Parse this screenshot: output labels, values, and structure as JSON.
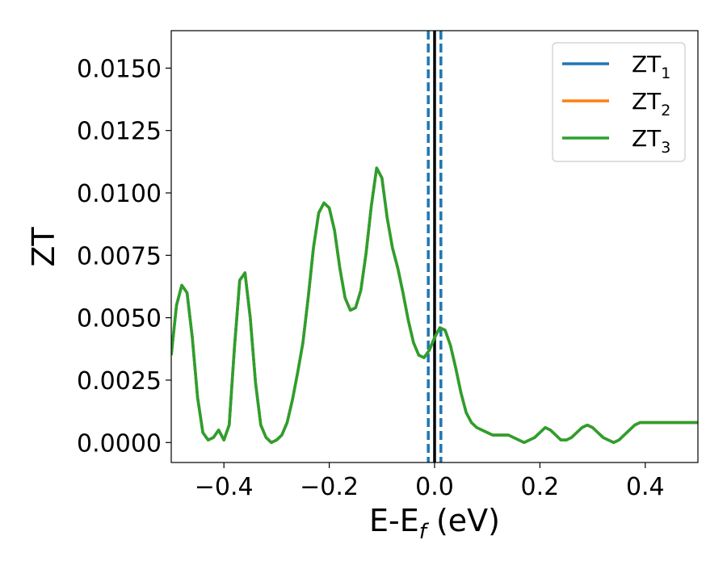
{
  "chart_data": {
    "type": "line",
    "xlabel": {
      "main": "E-E",
      "sub": "f",
      "suffix": " (eV)"
    },
    "ylabel": "ZT",
    "xlim": [
      -0.5,
      0.5
    ],
    "ylim": [
      -0.0008,
      0.0165
    ],
    "xticks": [
      -0.4,
      -0.2,
      0.0,
      0.2,
      0.4
    ],
    "xtick_labels": [
      "−0.4",
      "−0.2",
      "0.0",
      "0.2",
      "0.4"
    ],
    "yticks": [
      0.0,
      0.0025,
      0.005,
      0.0075,
      0.01,
      0.0125,
      0.015
    ],
    "ytick_labels": [
      "0.0000",
      "0.0025",
      "0.0050",
      "0.0075",
      "0.0100",
      "0.0125",
      "0.0150"
    ],
    "grid": false,
    "legend_position": "top-right",
    "vlines": [
      {
        "x": -0.012,
        "style": "dashed",
        "color": "#1f77b4"
      },
      {
        "x": 0.0,
        "style": "solid",
        "color": "#000000"
      },
      {
        "x": 0.012,
        "style": "dashed",
        "color": "#1f77b4"
      }
    ],
    "x": [
      -0.5,
      -0.49,
      -0.48,
      -0.47,
      -0.46,
      -0.45,
      -0.44,
      -0.43,
      -0.42,
      -0.41,
      -0.4,
      -0.39,
      -0.38,
      -0.37,
      -0.36,
      -0.35,
      -0.34,
      -0.33,
      -0.32,
      -0.31,
      -0.3,
      -0.29,
      -0.28,
      -0.27,
      -0.26,
      -0.25,
      -0.24,
      -0.23,
      -0.22,
      -0.21,
      -0.2,
      -0.19,
      -0.18,
      -0.17,
      -0.16,
      -0.15,
      -0.14,
      -0.13,
      -0.12,
      -0.11,
      -0.1,
      -0.09,
      -0.08,
      -0.07,
      -0.06,
      -0.05,
      -0.04,
      -0.03,
      -0.02,
      -0.01,
      0.0,
      0.01,
      0.02,
      0.03,
      0.04,
      0.05,
      0.06,
      0.07,
      0.08,
      0.09,
      0.1,
      0.11,
      0.12,
      0.13,
      0.14,
      0.15,
      0.16,
      0.17,
      0.18,
      0.19,
      0.2,
      0.21,
      0.22,
      0.23,
      0.24,
      0.25,
      0.26,
      0.27,
      0.28,
      0.29,
      0.3,
      0.31,
      0.32,
      0.33,
      0.34,
      0.35,
      0.36,
      0.37,
      0.38,
      0.39,
      0.4,
      0.41,
      0.42,
      0.43,
      0.44,
      0.45,
      0.46,
      0.47,
      0.48,
      0.49,
      0.5
    ],
    "series": [
      {
        "name": "ZT",
        "name_sub": "1",
        "color": "#1f77b4",
        "values": [
          0.0035,
          0.0055,
          0.0063,
          0.006,
          0.0042,
          0.0018,
          0.0004,
          0.0001,
          0.0002,
          0.0005,
          0.0001,
          0.0007,
          0.0038,
          0.0065,
          0.0068,
          0.005,
          0.0024,
          0.0007,
          0.0002,
          0.0,
          0.0001,
          0.0003,
          0.0008,
          0.0017,
          0.0028,
          0.004,
          0.0058,
          0.0078,
          0.0092,
          0.0096,
          0.0094,
          0.0085,
          0.007,
          0.0058,
          0.0053,
          0.0054,
          0.0061,
          0.0076,
          0.0095,
          0.011,
          0.0106,
          0.009,
          0.0078,
          0.007,
          0.006,
          0.0049,
          0.004,
          0.0035,
          0.0034,
          0.0037,
          0.0042,
          0.0046,
          0.0045,
          0.0039,
          0.003,
          0.002,
          0.0012,
          0.0008,
          0.0006,
          0.0005,
          0.0004,
          0.0003,
          0.0003,
          0.0003,
          0.0003,
          0.0002,
          0.0001,
          0.0,
          0.0001,
          0.0002,
          0.0004,
          0.0006,
          0.0005,
          0.0003,
          0.0001,
          0.0001,
          0.0002,
          0.0004,
          0.0006,
          0.0007,
          0.0006,
          0.0004,
          0.0002,
          0.0001,
          0.0,
          0.0001,
          0.0003,
          0.0005,
          0.0007,
          0.0008,
          0.0008,
          0.0008,
          0.0008,
          0.0008,
          0.0008,
          0.0008,
          0.0008,
          0.0008,
          0.0008,
          0.0008,
          0.0008
        ]
      },
      {
        "name": "ZT",
        "name_sub": "2",
        "color": "#ff7f0e",
        "values": [
          0.0035,
          0.0055,
          0.0063,
          0.006,
          0.0042,
          0.0018,
          0.0004,
          0.0001,
          0.0002,
          0.0005,
          0.0001,
          0.0007,
          0.0038,
          0.0065,
          0.0068,
          0.005,
          0.0024,
          0.0007,
          0.0002,
          0.0,
          0.0001,
          0.0003,
          0.0008,
          0.0017,
          0.0028,
          0.004,
          0.0058,
          0.0078,
          0.0092,
          0.0096,
          0.0094,
          0.0085,
          0.007,
          0.0058,
          0.0053,
          0.0054,
          0.0061,
          0.0076,
          0.0095,
          0.011,
          0.0106,
          0.009,
          0.0078,
          0.007,
          0.006,
          0.0049,
          0.004,
          0.0035,
          0.0034,
          0.0037,
          0.0042,
          0.0046,
          0.0045,
          0.0039,
          0.003,
          0.002,
          0.0012,
          0.0008,
          0.0006,
          0.0005,
          0.0004,
          0.0003,
          0.0003,
          0.0003,
          0.0003,
          0.0002,
          0.0001,
          0.0,
          0.0001,
          0.0002,
          0.0004,
          0.0006,
          0.0005,
          0.0003,
          0.0001,
          0.0001,
          0.0002,
          0.0004,
          0.0006,
          0.0007,
          0.0006,
          0.0004,
          0.0002,
          0.0001,
          0.0,
          0.0001,
          0.0003,
          0.0005,
          0.0007,
          0.0008,
          0.0008,
          0.0008,
          0.0008,
          0.0008,
          0.0008,
          0.0008,
          0.0008,
          0.0008,
          0.0008,
          0.0008,
          0.0008
        ]
      },
      {
        "name": "ZT",
        "name_sub": "3",
        "color": "#2ca02c",
        "values": [
          0.0035,
          0.0055,
          0.0063,
          0.006,
          0.0042,
          0.0018,
          0.0004,
          0.0001,
          0.0002,
          0.0005,
          0.0001,
          0.0007,
          0.0038,
          0.0065,
          0.0068,
          0.005,
          0.0024,
          0.0007,
          0.0002,
          0.0,
          0.0001,
          0.0003,
          0.0008,
          0.0017,
          0.0028,
          0.004,
          0.0058,
          0.0078,
          0.0092,
          0.0096,
          0.0094,
          0.0085,
          0.007,
          0.0058,
          0.0053,
          0.0054,
          0.0061,
          0.0076,
          0.0095,
          0.011,
          0.0106,
          0.009,
          0.0078,
          0.007,
          0.006,
          0.0049,
          0.004,
          0.0035,
          0.0034,
          0.0037,
          0.0042,
          0.0046,
          0.0045,
          0.0039,
          0.003,
          0.002,
          0.0012,
          0.0008,
          0.0006,
          0.0005,
          0.0004,
          0.0003,
          0.0003,
          0.0003,
          0.0003,
          0.0002,
          0.0001,
          0.0,
          0.0001,
          0.0002,
          0.0004,
          0.0006,
          0.0005,
          0.0003,
          0.0001,
          0.0001,
          0.0002,
          0.0004,
          0.0006,
          0.0007,
          0.0006,
          0.0004,
          0.0002,
          0.0001,
          0.0,
          0.0001,
          0.0003,
          0.0005,
          0.0007,
          0.0008,
          0.0008,
          0.0008,
          0.0008,
          0.0008,
          0.0008,
          0.0008,
          0.0008,
          0.0008,
          0.0008,
          0.0008,
          0.0008
        ]
      }
    ]
  }
}
